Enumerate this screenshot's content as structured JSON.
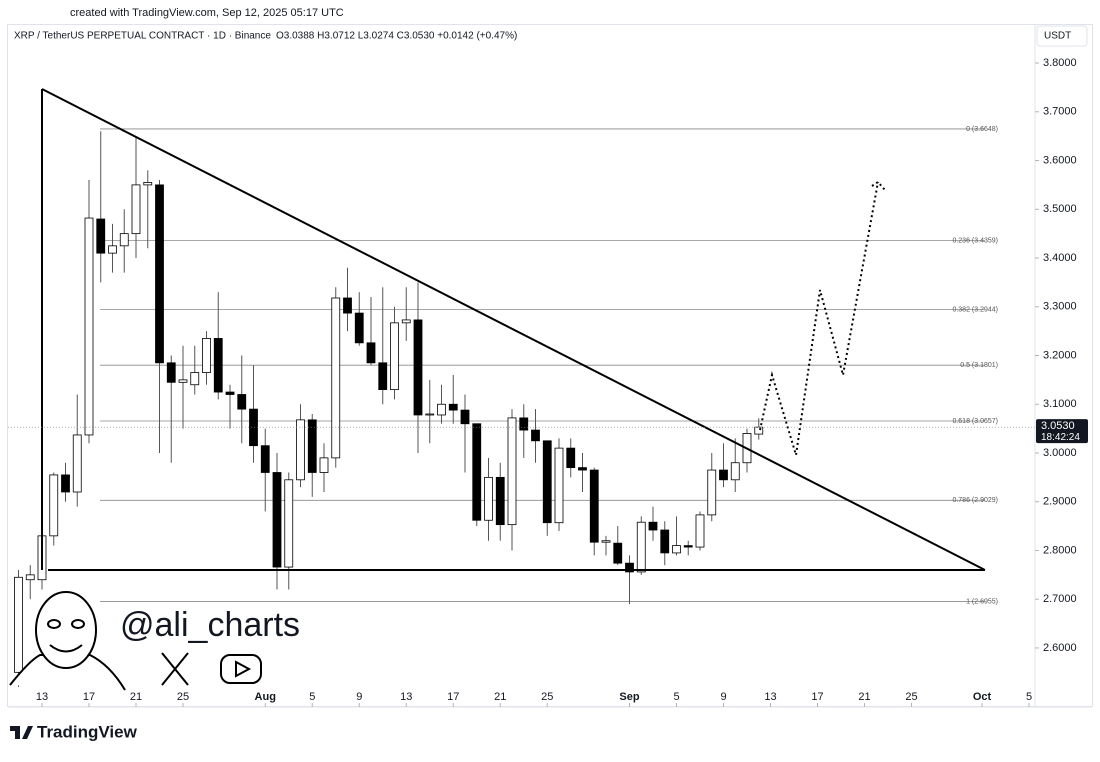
{
  "header": {
    "created": "created with TradingView.com, Sep 12, 2025 05:17 UTC",
    "brand": "TradingView",
    "watermark": "@ali_charts"
  },
  "chart_data": {
    "type": "candlestick",
    "title": "XRP / TetherUS PERPETUAL CONTRACT · 1D · Binance",
    "ohlc_legend": "O3.0388 H3.0712 L3.0274 C3.0530 +0.0142 (+0.47%)",
    "currency": "USDT",
    "x": [
      "2025-07-11",
      "2025-07-12",
      "2025-07-13",
      "2025-07-14",
      "2025-07-15",
      "2025-07-16",
      "2025-07-17",
      "2025-07-18",
      "2025-07-19",
      "2025-07-20",
      "2025-07-21",
      "2025-07-22",
      "2025-07-23",
      "2025-07-24",
      "2025-07-25",
      "2025-07-26",
      "2025-07-27",
      "2025-07-28",
      "2025-07-29",
      "2025-07-30",
      "2025-07-31",
      "2025-08-01",
      "2025-08-02",
      "2025-08-03",
      "2025-08-04",
      "2025-08-05",
      "2025-08-06",
      "2025-08-07",
      "2025-08-08",
      "2025-08-09",
      "2025-08-10",
      "2025-08-11",
      "2025-08-12",
      "2025-08-13",
      "2025-08-14",
      "2025-08-15",
      "2025-08-16",
      "2025-08-17",
      "2025-08-18",
      "2025-08-19",
      "2025-08-20",
      "2025-08-21",
      "2025-08-22",
      "2025-08-23",
      "2025-08-24",
      "2025-08-25",
      "2025-08-26",
      "2025-08-27",
      "2025-08-28",
      "2025-08-29",
      "2025-08-30",
      "2025-08-31",
      "2025-09-01",
      "2025-09-02",
      "2025-09-03",
      "2025-09-04",
      "2025-09-05",
      "2025-09-06",
      "2025-09-07",
      "2025-09-08",
      "2025-09-09",
      "2025-09-10",
      "2025-09-11",
      "2025-09-12"
    ],
    "open": [
      2.55,
      2.74,
      2.74,
      2.83,
      2.955,
      2.92,
      3.037,
      3.48,
      3.41,
      3.425,
      3.45,
      3.55,
      3.55,
      3.185,
      3.145,
      3.14,
      3.165,
      3.235,
      3.125,
      3.12,
      3.09,
      3.015,
      2.96,
      2.766,
      2.945,
      3.068,
      2.96,
      2.99,
      3.318,
      3.287,
      3.226,
      3.185,
      3.13,
      3.267,
      3.273,
      3.078,
      3.078,
      3.1,
      3.088,
      3.06,
      2.862,
      2.95,
      2.853,
      3.072,
      3.047,
      3.025,
      2.857,
      3.01,
      2.97,
      2.965,
      2.817,
      2.815,
      2.774,
      2.756,
      2.858,
      2.842,
      2.795,
      2.81,
      2.807,
      2.873,
      2.965,
      2.945,
      2.98,
      3.0388
    ],
    "high": [
      2.76,
      2.77,
      2.95,
      2.96,
      2.98,
      3.12,
      3.56,
      3.66,
      3.47,
      3.5,
      3.65,
      3.58,
      3.56,
      3.2,
      3.22,
      3.22,
      3.25,
      3.33,
      3.14,
      3.2,
      3.18,
      3.05,
      3.0,
      2.96,
      3.1,
      3.08,
      3.02,
      3.34,
      3.38,
      3.33,
      3.32,
      3.34,
      3.3,
      3.34,
      3.35,
      3.15,
      3.14,
      3.16,
      3.12,
      3.06,
      2.99,
      2.98,
      3.09,
      3.1,
      3.09,
      3.02,
      3.03,
      3.03,
      3.0,
      2.97,
      2.83,
      2.85,
      2.79,
      2.87,
      2.89,
      2.86,
      2.87,
      2.82,
      2.88,
      3.0,
      3.02,
      3.03,
      3.05,
      3.0712
    ],
    "low": [
      2.52,
      2.7,
      2.72,
      2.81,
      2.9,
      2.89,
      3.02,
      3.35,
      3.37,
      3.37,
      3.4,
      3.42,
      3.0,
      2.98,
      3.05,
      3.12,
      3.14,
      3.11,
      3.05,
      3.02,
      2.98,
      2.88,
      2.72,
      2.72,
      2.93,
      2.91,
      2.92,
      2.97,
      3.25,
      3.22,
      3.18,
      3.1,
      3.11,
      3.23,
      3.0,
      3.02,
      3.06,
      3.06,
      2.96,
      2.85,
      2.82,
      2.82,
      2.8,
      2.99,
      2.98,
      2.83,
      2.84,
      2.95,
      2.92,
      2.79,
      2.79,
      2.77,
      2.69,
      2.75,
      2.82,
      2.77,
      2.79,
      2.79,
      2.8,
      2.86,
      2.93,
      2.92,
      2.96,
      3.0274
    ],
    "close": [
      2.745,
      2.75,
      2.83,
      2.955,
      2.92,
      3.037,
      3.482,
      3.41,
      3.425,
      3.45,
      3.55,
      3.555,
      3.185,
      3.145,
      3.15,
      3.165,
      3.235,
      3.125,
      3.12,
      3.09,
      3.015,
      2.96,
      2.766,
      2.945,
      3.068,
      2.96,
      2.99,
      3.318,
      3.287,
      3.226,
      3.185,
      3.13,
      3.267,
      3.273,
      3.078,
      3.08,
      3.1,
      3.088,
      3.06,
      2.862,
      2.95,
      2.853,
      3.072,
      3.047,
      3.025,
      2.857,
      3.01,
      2.97,
      2.965,
      2.817,
      2.82,
      2.774,
      2.756,
      2.858,
      2.842,
      2.795,
      2.81,
      2.807,
      2.873,
      2.965,
      2.945,
      2.98,
      3.04,
      3.053
    ],
    "up_color": "#ffffff",
    "down_color": "#000000",
    "outline_color": "#000000",
    "xlim": [
      "2025-07-10",
      "2025-10-05"
    ],
    "xticks": [
      {
        "value": "2025-07-13",
        "label": "13"
      },
      {
        "value": "2025-07-17",
        "label": "17"
      },
      {
        "value": "2025-07-21",
        "label": "21"
      },
      {
        "value": "2025-07-25",
        "label": "25"
      },
      {
        "value": "2025-08-01",
        "label": "Aug"
      },
      {
        "value": "2025-08-05",
        "label": "5"
      },
      {
        "value": "2025-08-09",
        "label": "9"
      },
      {
        "value": "2025-08-13",
        "label": "13"
      },
      {
        "value": "2025-08-17",
        "label": "17"
      },
      {
        "value": "2025-08-21",
        "label": "21"
      },
      {
        "value": "2025-08-25",
        "label": "25"
      },
      {
        "value": "2025-09-01",
        "label": "Sep"
      },
      {
        "value": "2025-09-05",
        "label": "5"
      },
      {
        "value": "2025-09-09",
        "label": "9"
      },
      {
        "value": "2025-09-13",
        "label": "13"
      },
      {
        "value": "2025-09-17",
        "label": "17"
      },
      {
        "value": "2025-09-21",
        "label": "21"
      },
      {
        "value": "2025-09-25",
        "label": "25"
      },
      {
        "value": "2025-10-01",
        "label": "Oct"
      },
      {
        "value": "2025-10-05",
        "label": "5"
      }
    ],
    "ylim": [
      2.483,
      3.837
    ],
    "yticks": [
      {
        "value": 3.8,
        "label": "3.8000"
      },
      {
        "value": 3.7,
        "label": "3.7000"
      },
      {
        "value": 3.6,
        "label": "3.6000"
      },
      {
        "value": 3.5,
        "label": "3.5000"
      },
      {
        "value": 3.4,
        "label": "3.4000"
      },
      {
        "value": 3.3,
        "label": "3.3000"
      },
      {
        "value": 3.2,
        "label": "3.2000"
      },
      {
        "value": 3.1,
        "label": "3.1000"
      },
      {
        "value": 3.0,
        "label": "3.0000"
      },
      {
        "value": 2.9,
        "label": "2.9000"
      },
      {
        "value": 2.8,
        "label": "2.8000"
      },
      {
        "value": 2.7,
        "label": "2.7000"
      },
      {
        "value": 2.6,
        "label": "2.6000"
      }
    ],
    "fib_levels": [
      {
        "value": 3.6648,
        "label": "0 (3.6648)"
      },
      {
        "value": 3.4359,
        "label": "0.236 (3.4359)"
      },
      {
        "value": 3.2944,
        "label": "0.382 (3.2944)"
      },
      {
        "value": 3.1801,
        "label": "0.5 (3.1801)"
      },
      {
        "value": 3.0657,
        "label": "0.618 (3.0657)"
      },
      {
        "value": 2.9029,
        "label": "0.786 (2.9029)"
      },
      {
        "value": 2.6955,
        "label": "1 (2.6955)"
      }
    ],
    "last_price": {
      "value": 3.053,
      "label": "3.0530"
    },
    "countdown": "18:42:24"
  }
}
